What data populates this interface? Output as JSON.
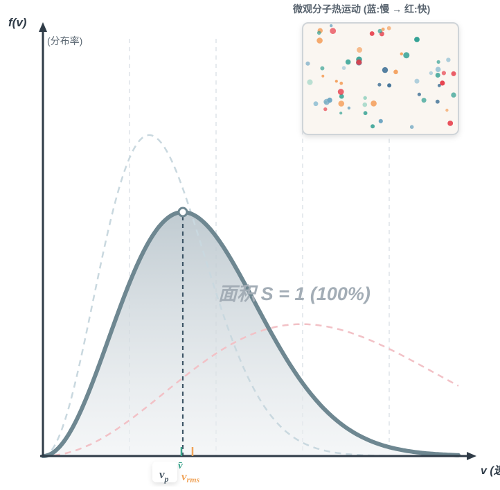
{
  "axes": {
    "y_label": "f(v)",
    "y_unit": "(分布率)",
    "x_label": "v (速"
  },
  "area_label": "面积 S = 1 (100%)",
  "particle_panel": {
    "title": "微观分子热运动 (蓝:慢 → 红:快)"
  },
  "markers": {
    "vp": "v",
    "vp_sub": "p",
    "vmean": "v̄",
    "vrms": "v",
    "vrms_sub": "rms"
  },
  "colors": {
    "main_curve": "#6e8791",
    "cool_curve": "#c9d8df",
    "hot_curve": "#f2c1c6",
    "axis": "#2f3b47",
    "vmean": "#3aa38b",
    "vrms": "#f0a45a",
    "particle_slow": "#3d6f95",
    "particle_mid": "#2a9d8f",
    "particle_fast": "#f4a261",
    "particle_hot": "#e63946"
  },
  "chart_data": {
    "type": "line",
    "series": [
      {
        "sigma": 1.0,
        "style": "solid-filled",
        "color": "#6e8791"
      },
      {
        "sigma": 0.76,
        "style": "dashed",
        "color": "#c9d8df"
      },
      {
        "sigma": 1.85,
        "style": "dashed",
        "color": "#f2c1c6"
      }
    ],
    "xlim": [
      0,
      4.2
    ],
    "ylim": [
      0,
      1.0
    ]
  }
}
